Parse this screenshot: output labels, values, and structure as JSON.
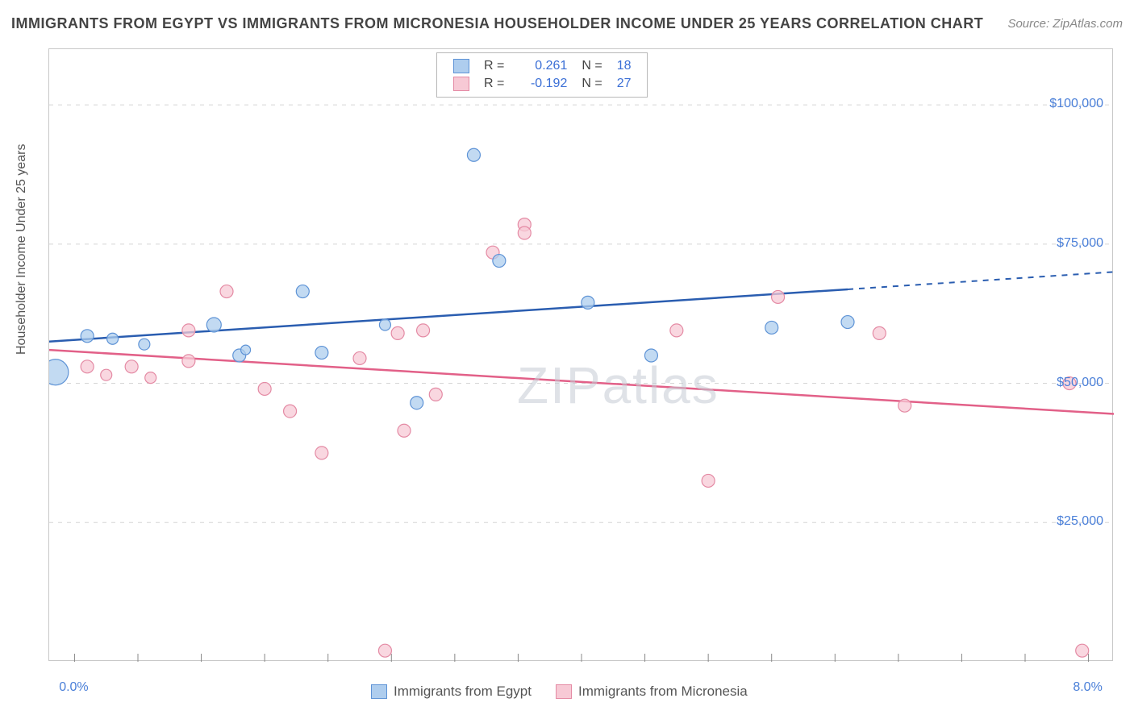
{
  "title": "IMMIGRANTS FROM EGYPT VS IMMIGRANTS FROM MICRONESIA HOUSEHOLDER INCOME UNDER 25 YEARS CORRELATION CHART",
  "source": "Source: ZipAtlas.com",
  "watermark": "ZIPatlas",
  "yaxis_title": "Householder Income Under 25 years",
  "chart": {
    "type": "scatter-with-regression",
    "background_color": "#ffffff",
    "grid_color": "#d5d5d5",
    "border_color": "#c8c8c8",
    "xlim": [
      -0.2,
      8.2
    ],
    "ylim": [
      0,
      110000
    ],
    "x_ticks": [
      0.0,
      0.5,
      1.0,
      1.5,
      2.0,
      2.5,
      3.0,
      3.5,
      4.0,
      4.5,
      5.0,
      5.5,
      6.0,
      6.5,
      7.0,
      7.5,
      8.0
    ],
    "x_tick_labels": {
      "0": "0.0%",
      "8": "8.0%"
    },
    "y_ticks": [
      25000,
      50000,
      75000,
      100000
    ],
    "y_tick_labels": [
      "$25,000",
      "$50,000",
      "$75,000",
      "$100,000"
    ],
    "label_fontsize": 16,
    "tick_label_color": "#4a7fd8",
    "series": [
      {
        "name": "Immigrants from Egypt",
        "fill_color": "#aecdee",
        "stroke_color": "#5e93d6",
        "line_color": "#2a5db0",
        "r": 0.261,
        "n": 18,
        "regression": {
          "y_at_xmin": 57500,
          "y_at_xmax": 70000,
          "solid_until_x": 6.1
        },
        "points": [
          {
            "x": -0.15,
            "y": 52000,
            "r": 16
          },
          {
            "x": 0.1,
            "y": 58500,
            "r": 8
          },
          {
            "x": 0.3,
            "y": 58000,
            "r": 7
          },
          {
            "x": 0.55,
            "y": 57000,
            "r": 7
          },
          {
            "x": 1.1,
            "y": 60500,
            "r": 9
          },
          {
            "x": 1.3,
            "y": 55000,
            "r": 8
          },
          {
            "x": 1.35,
            "y": 56000,
            "r": 6
          },
          {
            "x": 1.8,
            "y": 66500,
            "r": 8
          },
          {
            "x": 1.95,
            "y": 55500,
            "r": 8
          },
          {
            "x": 2.45,
            "y": 60500,
            "r": 7
          },
          {
            "x": 2.7,
            "y": 46500,
            "r": 8
          },
          {
            "x": 3.15,
            "y": 91000,
            "r": 8
          },
          {
            "x": 3.35,
            "y": 72000,
            "r": 8
          },
          {
            "x": 4.05,
            "y": 64500,
            "r": 8
          },
          {
            "x": 4.55,
            "y": 55000,
            "r": 8
          },
          {
            "x": 5.5,
            "y": 60000,
            "r": 8
          },
          {
            "x": 6.1,
            "y": 61000,
            "r": 8
          }
        ]
      },
      {
        "name": "Immigrants from Micronesia",
        "fill_color": "#f7c9d5",
        "stroke_color": "#e48aa4",
        "line_color": "#e26088",
        "r": -0.192,
        "n": 27,
        "regression": {
          "y_at_xmin": 56000,
          "y_at_xmax": 44500,
          "solid_until_x": 8.2
        },
        "points": [
          {
            "x": 0.1,
            "y": 53000,
            "r": 8
          },
          {
            "x": 0.25,
            "y": 51500,
            "r": 7
          },
          {
            "x": 0.45,
            "y": 53000,
            "r": 8
          },
          {
            "x": 0.6,
            "y": 51000,
            "r": 7
          },
          {
            "x": 0.9,
            "y": 59500,
            "r": 8
          },
          {
            "x": 0.9,
            "y": 54000,
            "r": 8
          },
          {
            "x": 1.2,
            "y": 66500,
            "r": 8
          },
          {
            "x": 1.5,
            "y": 49000,
            "r": 8
          },
          {
            "x": 1.7,
            "y": 45000,
            "r": 8
          },
          {
            "x": 1.95,
            "y": 37500,
            "r": 8
          },
          {
            "x": 2.25,
            "y": 54500,
            "r": 8
          },
          {
            "x": 2.45,
            "y": 2000,
            "r": 8
          },
          {
            "x": 2.55,
            "y": 59000,
            "r": 8
          },
          {
            "x": 2.6,
            "y": 41500,
            "r": 8
          },
          {
            "x": 2.75,
            "y": 59500,
            "r": 8
          },
          {
            "x": 2.85,
            "y": 48000,
            "r": 8
          },
          {
            "x": 3.3,
            "y": 73500,
            "r": 8
          },
          {
            "x": 3.55,
            "y": 78500,
            "r": 8
          },
          {
            "x": 3.55,
            "y": 77000,
            "r": 8
          },
          {
            "x": 4.75,
            "y": 59500,
            "r": 8
          },
          {
            "x": 5.0,
            "y": 32500,
            "r": 8
          },
          {
            "x": 5.55,
            "y": 65500,
            "r": 8
          },
          {
            "x": 6.35,
            "y": 59000,
            "r": 8
          },
          {
            "x": 6.55,
            "y": 46000,
            "r": 8
          },
          {
            "x": 7.85,
            "y": 50000,
            "r": 8
          },
          {
            "x": 7.95,
            "y": 2000,
            "r": 8
          }
        ]
      }
    ]
  },
  "legend_top": {
    "rows": [
      {
        "swatch_fill": "#aecdee",
        "swatch_stroke": "#5e93d6",
        "r_label": "R =",
        "r_value": "0.261",
        "n_label": "N =",
        "n_value": "18"
      },
      {
        "swatch_fill": "#f7c9d5",
        "swatch_stroke": "#e48aa4",
        "r_label": "R =",
        "r_value": "-0.192",
        "n_label": "N =",
        "n_value": "27"
      }
    ]
  },
  "legend_bottom": [
    {
      "swatch_fill": "#aecdee",
      "swatch_stroke": "#5e93d6",
      "label": "Immigrants from Egypt"
    },
    {
      "swatch_fill": "#f7c9d5",
      "swatch_stroke": "#e48aa4",
      "label": "Immigrants from Micronesia"
    }
  ]
}
